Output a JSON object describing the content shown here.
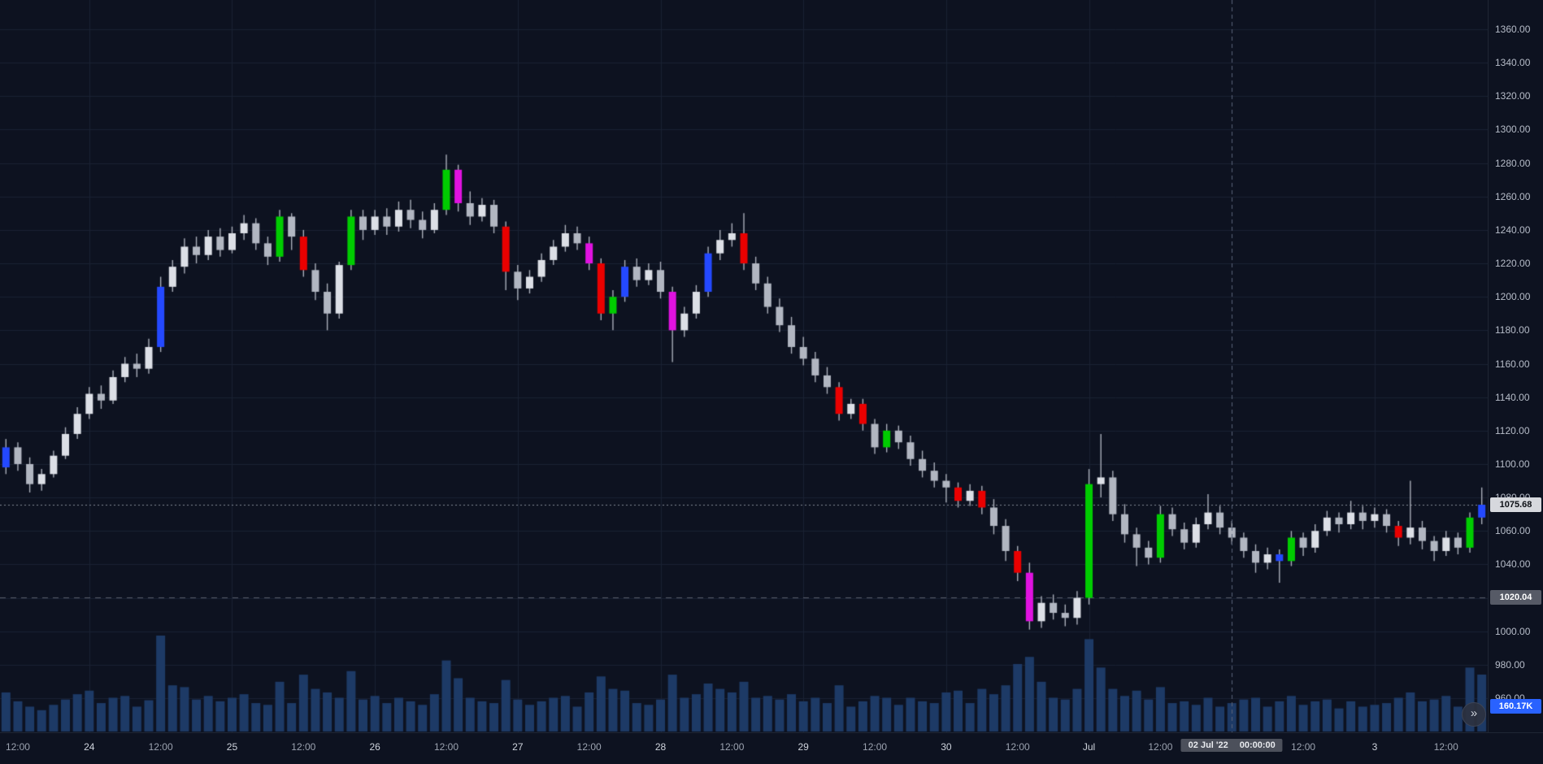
{
  "colors": {
    "background": "#0d1220",
    "grid": "#1a2133",
    "axis_text": "#b7bdc9",
    "candle_up": "#dcdfe6",
    "candle_down": "#b1b6c1",
    "wick": "#a9aeb9",
    "highlight_green": "#00cc00",
    "highlight_red": "#ea0000",
    "highlight_blue": "#2449ff",
    "highlight_magenta": "#e012e0",
    "volume_bar": "#1d3a66",
    "last_price_line": "rgba(160,166,178,0.8)",
    "level_line": "rgba(160,166,178,0.5)",
    "crosshair_line": "#5a6378",
    "last_price_badge_bg": "#d6d8dd",
    "last_price_badge_text": "#0b0e14",
    "level_badge_bg": "#565a66",
    "level_badge_text": "#ffffff",
    "volume_badge_bg": "#2962ff",
    "volume_badge_text": "#ffffff",
    "crosshair_badge_bg": "#4c505b"
  },
  "price_axis": {
    "tick_labels": [
      "1360.00",
      "1340.00",
      "1320.00",
      "1300.00",
      "1280.00",
      "1260.00",
      "1240.00",
      "1220.00",
      "1200.00",
      "1180.00",
      "1160.00",
      "1140.00",
      "1120.00",
      "1100.00",
      "1080.00",
      "1060.00",
      "1040.00",
      "1020.00",
      "1000.00",
      "980.00",
      "960.00"
    ]
  },
  "time_axis": {
    "labels": [
      {
        "i": 1,
        "t": "12:00",
        "major": false
      },
      {
        "i": 7,
        "t": "24",
        "major": true
      },
      {
        "i": 13,
        "t": "12:00",
        "major": false
      },
      {
        "i": 19,
        "t": "25",
        "major": true
      },
      {
        "i": 25,
        "t": "12:00",
        "major": false
      },
      {
        "i": 31,
        "t": "26",
        "major": true
      },
      {
        "i": 37,
        "t": "12:00",
        "major": false
      },
      {
        "i": 43,
        "t": "27",
        "major": true
      },
      {
        "i": 49,
        "t": "12:00",
        "major": false
      },
      {
        "i": 55,
        "t": "28",
        "major": true
      },
      {
        "i": 61,
        "t": "12:00",
        "major": false
      },
      {
        "i": 67,
        "t": "29",
        "major": true
      },
      {
        "i": 73,
        "t": "12:00",
        "major": false
      },
      {
        "i": 79,
        "t": "30",
        "major": true
      },
      {
        "i": 85,
        "t": "12:00",
        "major": false
      },
      {
        "i": 91,
        "t": "Jul",
        "major": true
      },
      {
        "i": 97,
        "t": "12:00",
        "major": false
      },
      {
        "i": 109,
        "t": "12:00",
        "major": false
      },
      {
        "i": 115,
        "t": "3",
        "major": true
      },
      {
        "i": 121,
        "t": "12:00",
        "major": false
      }
    ]
  },
  "badges": {
    "last_price": "1075.68",
    "level_price": "1020.04",
    "volume": "160.17K",
    "crosshair_date": "02 Jul '22",
    "crosshair_time": "00:00:00"
  },
  "controls": {
    "scroll_to_realtime_icon": "»"
  },
  "chart_data": {
    "type": "candlestick",
    "ylim": [
      960,
      1360
    ],
    "grid": true,
    "legend_position": "none",
    "last_price": 1075.68,
    "level_price": 1020.04,
    "crosshair_index": 103,
    "color_key": {
      "0": "neutral",
      "1": "green",
      "2": "red",
      "3": "blue",
      "4": "magenta"
    },
    "columns": [
      "open",
      "high",
      "low",
      "close",
      "volume_k",
      "color"
    ],
    "candles": [
      [
        1098,
        1115,
        1094,
        1110,
        110,
        3
      ],
      [
        1110,
        1113,
        1096,
        1100,
        85,
        0
      ],
      [
        1100,
        1104,
        1083,
        1088,
        70,
        0
      ],
      [
        1088,
        1097,
        1084,
        1094,
        60,
        0
      ],
      [
        1094,
        1108,
        1092,
        1105,
        75,
        0
      ],
      [
        1105,
        1122,
        1103,
        1118,
        90,
        0
      ],
      [
        1118,
        1134,
        1115,
        1130,
        105,
        0
      ],
      [
        1130,
        1146,
        1127,
        1142,
        115,
        0
      ],
      [
        1142,
        1147,
        1133,
        1138,
        80,
        0
      ],
      [
        1138,
        1156,
        1136,
        1152,
        95,
        0
      ],
      [
        1152,
        1164,
        1149,
        1160,
        100,
        0
      ],
      [
        1160,
        1166,
        1152,
        1157,
        70,
        0
      ],
      [
        1157,
        1175,
        1154,
        1170,
        88,
        0
      ],
      [
        1170,
        1212,
        1167,
        1206,
        270,
        3
      ],
      [
        1206,
        1222,
        1203,
        1218,
        130,
        0
      ],
      [
        1218,
        1235,
        1214,
        1230,
        125,
        0
      ],
      [
        1230,
        1236,
        1220,
        1225,
        90,
        0
      ],
      [
        1225,
        1240,
        1222,
        1236,
        100,
        0
      ],
      [
        1236,
        1241,
        1224,
        1228,
        85,
        0
      ],
      [
        1228,
        1242,
        1226,
        1238,
        95,
        0
      ],
      [
        1238,
        1249,
        1234,
        1244,
        105,
        0
      ],
      [
        1244,
        1247,
        1228,
        1232,
        80,
        0
      ],
      [
        1232,
        1236,
        1219,
        1224,
        75,
        0
      ],
      [
        1224,
        1252,
        1221,
        1248,
        140,
        1
      ],
      [
        1248,
        1250,
        1228,
        1236,
        80,
        0
      ],
      [
        1236,
        1240,
        1212,
        1216,
        160,
        2
      ],
      [
        1216,
        1220,
        1198,
        1203,
        120,
        0
      ],
      [
        1203,
        1208,
        1180,
        1190,
        110,
        0
      ],
      [
        1190,
        1221,
        1187,
        1219,
        95,
        0
      ],
      [
        1219,
        1252,
        1216,
        1248,
        170,
        1
      ],
      [
        1248,
        1252,
        1234,
        1240,
        90,
        0
      ],
      [
        1240,
        1252,
        1237,
        1248,
        100,
        0
      ],
      [
        1248,
        1253,
        1237,
        1242,
        80,
        0
      ],
      [
        1242,
        1257,
        1239,
        1252,
        95,
        0
      ],
      [
        1252,
        1258,
        1241,
        1246,
        85,
        0
      ],
      [
        1246,
        1251,
        1235,
        1240,
        75,
        0
      ],
      [
        1240,
        1256,
        1238,
        1252,
        105,
        0
      ],
      [
        1252,
        1285,
        1249,
        1276,
        200,
        1
      ],
      [
        1276,
        1279,
        1251,
        1256,
        150,
        4
      ],
      [
        1256,
        1263,
        1243,
        1248,
        95,
        0
      ],
      [
        1248,
        1259,
        1245,
        1255,
        85,
        0
      ],
      [
        1255,
        1258,
        1238,
        1242,
        80,
        0
      ],
      [
        1242,
        1245,
        1204,
        1215,
        145,
        2
      ],
      [
        1215,
        1219,
        1198,
        1205,
        90,
        0
      ],
      [
        1205,
        1216,
        1202,
        1212,
        75,
        0
      ],
      [
        1212,
        1226,
        1209,
        1222,
        85,
        0
      ],
      [
        1222,
        1234,
        1219,
        1230,
        95,
        0
      ],
      [
        1230,
        1243,
        1227,
        1238,
        100,
        0
      ],
      [
        1238,
        1242,
        1228,
        1232,
        70,
        0
      ],
      [
        1232,
        1236,
        1216,
        1220,
        110,
        4
      ],
      [
        1220,
        1223,
        1186,
        1190,
        155,
        2
      ],
      [
        1190,
        1204,
        1180,
        1200,
        120,
        1
      ],
      [
        1200,
        1222,
        1197,
        1218,
        115,
        3
      ],
      [
        1218,
        1223,
        1206,
        1210,
        80,
        0
      ],
      [
        1210,
        1220,
        1207,
        1216,
        75,
        0
      ],
      [
        1216,
        1221,
        1199,
        1203,
        90,
        0
      ],
      [
        1203,
        1206,
        1161,
        1180,
        160,
        4
      ],
      [
        1180,
        1194,
        1176,
        1190,
        95,
        0
      ],
      [
        1190,
        1207,
        1187,
        1203,
        105,
        0
      ],
      [
        1203,
        1230,
        1200,
        1226,
        135,
        3
      ],
      [
        1226,
        1240,
        1222,
        1234,
        120,
        0
      ],
      [
        1234,
        1244,
        1230,
        1238,
        110,
        0
      ],
      [
        1238,
        1250,
        1216,
        1220,
        140,
        2
      ],
      [
        1220,
        1224,
        1204,
        1208,
        95,
        0
      ],
      [
        1208,
        1212,
        1190,
        1194,
        100,
        0
      ],
      [
        1194,
        1199,
        1179,
        1183,
        90,
        0
      ],
      [
        1183,
        1188,
        1166,
        1170,
        105,
        0
      ],
      [
        1170,
        1176,
        1159,
        1163,
        85,
        0
      ],
      [
        1163,
        1167,
        1149,
        1153,
        95,
        0
      ],
      [
        1153,
        1158,
        1142,
        1146,
        80,
        0
      ],
      [
        1146,
        1149,
        1126,
        1130,
        130,
        2
      ],
      [
        1130,
        1139,
        1127,
        1136,
        70,
        0
      ],
      [
        1136,
        1139,
        1120,
        1124,
        85,
        2
      ],
      [
        1124,
        1127,
        1106,
        1110,
        100,
        0
      ],
      [
        1110,
        1124,
        1107,
        1120,
        95,
        1
      ],
      [
        1120,
        1123,
        1109,
        1113,
        75,
        0
      ],
      [
        1113,
        1117,
        1099,
        1103,
        95,
        0
      ],
      [
        1103,
        1108,
        1092,
        1096,
        85,
        0
      ],
      [
        1096,
        1101,
        1086,
        1090,
        80,
        0
      ],
      [
        1090,
        1094,
        1077,
        1086,
        110,
        0
      ],
      [
        1086,
        1089,
        1074,
        1078,
        115,
        2
      ],
      [
        1078,
        1088,
        1075,
        1084,
        80,
        0
      ],
      [
        1084,
        1087,
        1070,
        1074,
        120,
        2
      ],
      [
        1074,
        1079,
        1058,
        1063,
        105,
        0
      ],
      [
        1063,
        1067,
        1042,
        1048,
        130,
        0
      ],
      [
        1048,
        1051,
        1030,
        1035,
        190,
        2
      ],
      [
        1035,
        1041,
        1001,
        1006,
        210,
        4
      ],
      [
        1006,
        1021,
        1002,
        1017,
        140,
        0
      ],
      [
        1017,
        1022,
        1007,
        1011,
        95,
        0
      ],
      [
        1011,
        1016,
        1003,
        1008,
        90,
        0
      ],
      [
        1008,
        1024,
        1004,
        1020,
        120,
        0
      ],
      [
        1020,
        1097,
        1016,
        1088,
        260,
        1
      ],
      [
        1088,
        1118,
        1080,
        1092,
        180,
        0
      ],
      [
        1092,
        1096,
        1066,
        1070,
        120,
        0
      ],
      [
        1070,
        1076,
        1053,
        1058,
        100,
        0
      ],
      [
        1058,
        1062,
        1039,
        1050,
        115,
        0
      ],
      [
        1050,
        1054,
        1040,
        1044,
        90,
        0
      ],
      [
        1044,
        1075,
        1041,
        1070,
        125,
        1
      ],
      [
        1070,
        1074,
        1057,
        1061,
        80,
        0
      ],
      [
        1061,
        1065,
        1049,
        1053,
        85,
        0
      ],
      [
        1053,
        1068,
        1050,
        1064,
        75,
        0
      ],
      [
        1064,
        1082,
        1061,
        1071,
        95,
        0
      ],
      [
        1071,
        1075,
        1058,
        1062,
        70,
        0
      ],
      [
        1062,
        1066,
        1052,
        1056,
        80,
        0
      ],
      [
        1056,
        1059,
        1044,
        1048,
        90,
        0
      ],
      [
        1048,
        1052,
        1035,
        1041,
        95,
        0
      ],
      [
        1041,
        1050,
        1037,
        1046,
        70,
        0
      ],
      [
        1046,
        1049,
        1029,
        1042,
        85,
        3
      ],
      [
        1042,
        1060,
        1039,
        1056,
        100,
        1
      ],
      [
        1056,
        1059,
        1045,
        1050,
        75,
        0
      ],
      [
        1050,
        1064,
        1047,
        1060,
        85,
        0
      ],
      [
        1060,
        1072,
        1057,
        1068,
        90,
        0
      ],
      [
        1068,
        1071,
        1059,
        1064,
        65,
        0
      ],
      [
        1064,
        1078,
        1061,
        1071,
        85,
        0
      ],
      [
        1071,
        1075,
        1061,
        1066,
        70,
        0
      ],
      [
        1066,
        1074,
        1062,
        1070,
        75,
        0
      ],
      [
        1070,
        1073,
        1059,
        1063,
        80,
        0
      ],
      [
        1063,
        1066,
        1051,
        1056,
        95,
        2
      ],
      [
        1056,
        1090,
        1052,
        1062,
        110,
        0
      ],
      [
        1062,
        1066,
        1049,
        1054,
        85,
        0
      ],
      [
        1054,
        1057,
        1042,
        1048,
        90,
        0
      ],
      [
        1048,
        1060,
        1045,
        1056,
        100,
        0
      ],
      [
        1056,
        1059,
        1046,
        1050,
        70,
        0
      ],
      [
        1050,
        1071,
        1047,
        1068,
        180,
        1
      ],
      [
        1068,
        1086,
        1064,
        1075.68,
        160.17,
        3
      ]
    ]
  }
}
